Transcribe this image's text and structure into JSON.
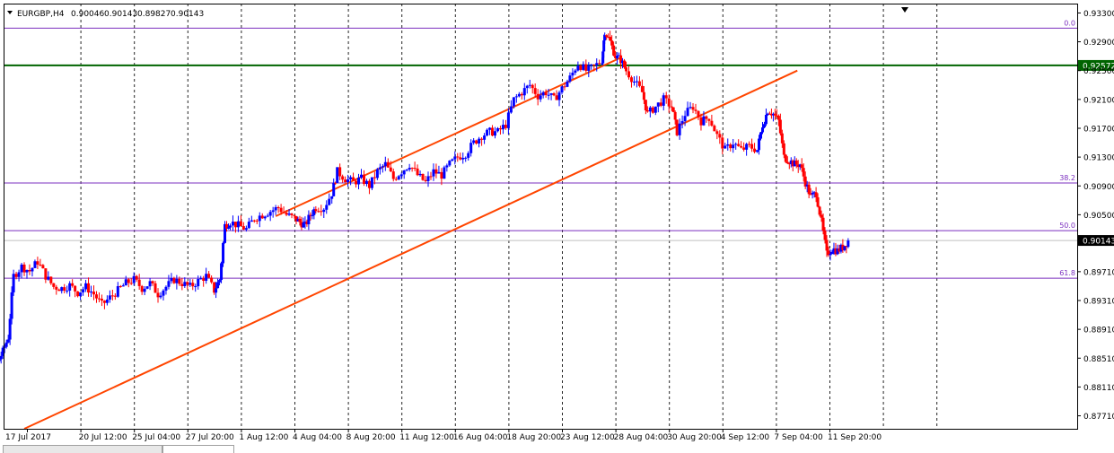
{
  "chart_data": {
    "type": "candlestick",
    "symbol_info": {
      "symbol": "EURGBP,H4",
      "open": "0.90046",
      "high": "0.90143",
      "low": "0.89827",
      "close": "0.90143"
    },
    "ylim": [
      0.8753,
      0.9343
    ],
    "yticks": [
      "0.93300",
      "0.92900",
      "0.92500",
      "0.92100",
      "0.91700",
      "0.91300",
      "0.90900",
      "0.90500",
      "0.90143",
      "0.89710",
      "0.89310",
      "0.88910",
      "0.88510",
      "0.88110",
      "0.87710"
    ],
    "xticks": [
      "17 Jul 2017",
      "20 Jul 12:00",
      "25 Jul 04:00",
      "27 Jul 20:00",
      "1 Aug 12:00",
      "4 Aug 04:00",
      "8 Aug 20:00",
      "11 Aug 12:00",
      "16 Aug 04:00",
      "18 Aug 20:00",
      "23 Aug 12:00",
      "28 Aug 04:00",
      "30 Aug 20:00",
      "4 Sep 12:00",
      "7 Sep 04:00",
      "11 Sep 20:00"
    ],
    "grid": true,
    "current_price": "0.90143",
    "horizontal_line": {
      "price": "0.92572",
      "color": "#006400"
    },
    "fibonacci": [
      {
        "label": "0.0",
        "price": 0.9309
      },
      {
        "label": "38.2",
        "price": 0.9094
      },
      {
        "label": "50.0",
        "price": 0.9028
      },
      {
        "label": "61.8",
        "price": 0.8962
      }
    ],
    "channel": {
      "color": "#ff4500",
      "upper": {
        "start": [
          0.8,
          0.9048
        ],
        "end": [
          11.0,
          0.9267
        ]
      },
      "upper2": {
        "start": [
          0.0,
          0.9048
        ],
        "end": [
          14.2,
          0.9245
        ]
      },
      "lower": {
        "start": [
          -1.0,
          0.8753
        ],
        "end": [
          14.3,
          0.9245
        ]
      }
    },
    "colors": {
      "bull": "#0000ff",
      "bear": "#ff0000",
      "grid": "#000000",
      "fib": "#7b2fbf"
    },
    "close_path": [
      [
        -1.1,
        0.8815
      ],
      [
        -1.0,
        0.885
      ],
      [
        -0.95,
        0.888
      ],
      [
        -0.85,
        0.8865
      ],
      [
        -0.75,
        0.8855
      ],
      [
        -0.65,
        0.884
      ],
      [
        -0.55,
        0.8845
      ],
      [
        -0.45,
        0.886
      ],
      [
        -0.35,
        0.888
      ],
      [
        -0.25,
        0.8965
      ],
      [
        -0.1,
        0.8978
      ],
      [
        0.05,
        0.8972
      ],
      [
        0.2,
        0.8985
      ],
      [
        0.35,
        0.8965
      ],
      [
        0.5,
        0.895
      ],
      [
        0.65,
        0.8948
      ],
      [
        0.8,
        0.8952
      ],
      [
        0.95,
        0.8942
      ],
      [
        1.1,
        0.895
      ],
      [
        1.25,
        0.894
      ],
      [
        1.4,
        0.8925
      ],
      [
        1.55,
        0.8935
      ],
      [
        1.7,
        0.8945
      ],
      [
        1.85,
        0.8955
      ],
      [
        2.0,
        0.896
      ],
      [
        2.15,
        0.8948
      ],
      [
        2.3,
        0.8955
      ],
      [
        2.45,
        0.894
      ],
      [
        2.6,
        0.895
      ],
      [
        2.75,
        0.896
      ],
      [
        2.9,
        0.8955
      ],
      [
        3.05,
        0.895
      ],
      [
        3.2,
        0.8958
      ],
      [
        3.35,
        0.8965
      ],
      [
        3.5,
        0.8945
      ],
      [
        3.6,
        0.896
      ],
      [
        3.7,
        0.9035
      ],
      [
        3.8,
        0.904
      ],
      [
        3.95,
        0.9035
      ],
      [
        4.1,
        0.903
      ],
      [
        4.25,
        0.9045
      ],
      [
        4.4,
        0.905
      ],
      [
        4.55,
        0.9055
      ],
      [
        4.7,
        0.906
      ],
      [
        4.85,
        0.905
      ],
      [
        5.0,
        0.9045
      ],
      [
        5.1,
        0.904
      ],
      [
        5.2,
        0.9035
      ],
      [
        5.3,
        0.905
      ],
      [
        5.4,
        0.906
      ],
      [
        5.55,
        0.906
      ],
      [
        5.7,
        0.908
      ],
      [
        5.8,
        0.911
      ],
      [
        5.95,
        0.91
      ],
      [
        6.1,
        0.9095
      ],
      [
        6.25,
        0.91
      ],
      [
        6.4,
        0.909
      ],
      [
        6.55,
        0.911
      ],
      [
        6.7,
        0.912
      ],
      [
        6.85,
        0.91
      ],
      [
        7.0,
        0.911
      ],
      [
        7.15,
        0.912
      ],
      [
        7.3,
        0.9105
      ],
      [
        7.45,
        0.9095
      ],
      [
        7.6,
        0.911
      ],
      [
        7.75,
        0.9105
      ],
      [
        7.9,
        0.912
      ],
      [
        8.05,
        0.913
      ],
      [
        8.2,
        0.9135
      ],
      [
        8.35,
        0.915
      ],
      [
        8.5,
        0.916
      ],
      [
        8.65,
        0.9165
      ],
      [
        8.8,
        0.9165
      ],
      [
        8.95,
        0.9175
      ],
      [
        9.1,
        0.921
      ],
      [
        9.25,
        0.922
      ],
      [
        9.4,
        0.923
      ],
      [
        9.55,
        0.9215
      ],
      [
        9.7,
        0.922
      ],
      [
        9.85,
        0.921
      ],
      [
        10.0,
        0.9225
      ],
      [
        10.15,
        0.924
      ],
      [
        10.3,
        0.926
      ],
      [
        10.45,
        0.925
      ],
      [
        10.6,
        0.9255
      ],
      [
        10.75,
        0.9265
      ],
      [
        10.8,
        0.9305
      ],
      [
        10.9,
        0.929
      ],
      [
        11.0,
        0.927
      ],
      [
        11.1,
        0.9265
      ],
      [
        11.2,
        0.925
      ],
      [
        11.35,
        0.9235
      ],
      [
        11.5,
        0.922
      ],
      [
        11.6,
        0.919
      ],
      [
        11.75,
        0.92
      ],
      [
        11.9,
        0.921
      ],
      [
        12.05,
        0.92
      ],
      [
        12.15,
        0.9165
      ],
      [
        12.3,
        0.919
      ],
      [
        12.45,
        0.92
      ],
      [
        12.6,
        0.918
      ],
      [
        12.75,
        0.9185
      ],
      [
        12.9,
        0.916
      ],
      [
        13.05,
        0.914
      ],
      [
        13.2,
        0.915
      ],
      [
        13.35,
        0.914
      ],
      [
        13.5,
        0.9145
      ],
      [
        13.65,
        0.914
      ],
      [
        13.75,
        0.9175
      ],
      [
        13.85,
        0.9195
      ],
      [
        13.95,
        0.919
      ],
      [
        14.05,
        0.918
      ],
      [
        14.15,
        0.913
      ],
      [
        14.25,
        0.9125
      ],
      [
        14.35,
        0.912
      ],
      [
        14.45,
        0.912
      ],
      [
        14.55,
        0.9095
      ],
      [
        14.65,
        0.9075
      ],
      [
        14.75,
        0.908
      ],
      [
        14.85,
        0.904
      ],
      [
        14.95,
        0.8995
      ],
      [
        15.05,
        0.9003
      ],
      [
        15.15,
        0.9
      ],
      [
        15.25,
        0.9005
      ],
      [
        15.35,
        0.9014
      ]
    ]
  }
}
